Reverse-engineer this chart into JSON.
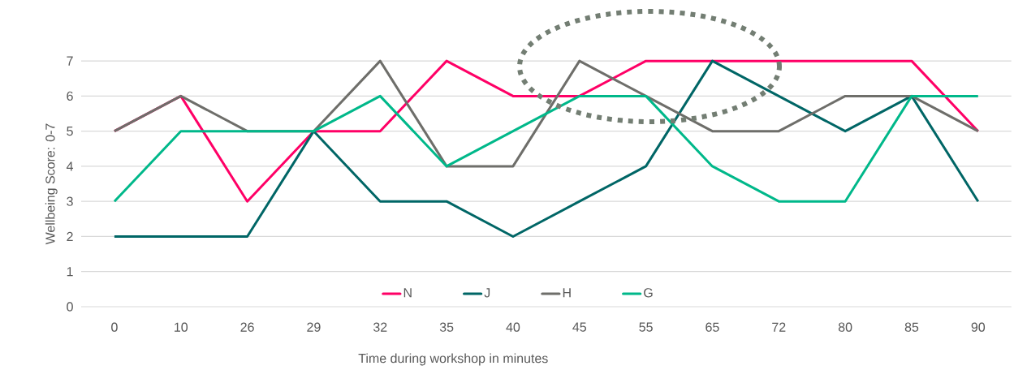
{
  "chart_data": {
    "type": "line",
    "xlabel": "Time during workshop in minutes",
    "ylabel": "Wellbeing Score: 0-7",
    "categories": [
      "0",
      "10",
      "26",
      "29",
      "32",
      "35",
      "40",
      "45",
      "55",
      "65",
      "72",
      "80",
      "85",
      "90"
    ],
    "series": [
      {
        "name": "N",
        "color": "#ff0066",
        "values": [
          5,
          6,
          3,
          5,
          5,
          7,
          6,
          6,
          7,
          7,
          7,
          7,
          7,
          5
        ]
      },
      {
        "name": "J",
        "color": "#006666",
        "values": [
          2,
          2,
          2,
          5,
          3,
          3,
          2,
          3,
          4,
          7,
          6,
          5,
          6,
          3
        ]
      },
      {
        "name": "H",
        "color": "#6e6e6a",
        "values": [
          5,
          6,
          5,
          5,
          7,
          4,
          4,
          7,
          6,
          5,
          5,
          6,
          6,
          5
        ]
      },
      {
        "name": "G",
        "color": "#00b88a",
        "values": [
          3,
          5,
          5,
          5,
          6,
          4,
          5,
          6,
          6,
          4,
          3,
          3,
          6,
          6
        ]
      }
    ],
    "ylim": [
      0,
      7
    ],
    "yticks": [
      0,
      1,
      2,
      3,
      4,
      5,
      6,
      7
    ],
    "grid": "y",
    "legend": "bottom",
    "marker": "none",
    "line_style": "solid"
  }
}
